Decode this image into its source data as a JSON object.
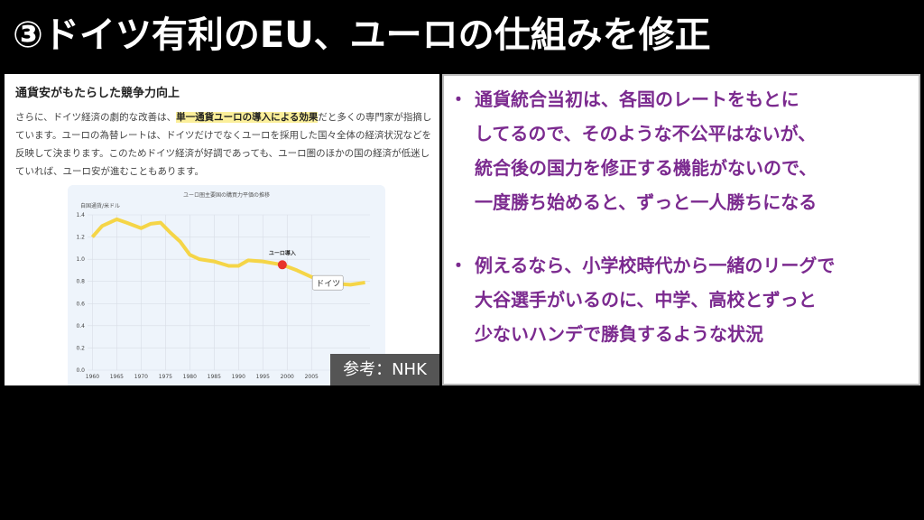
{
  "header": {
    "title": "③ドイツ有利のEU、ユーロの仕組みを修正"
  },
  "article": {
    "heading": "通貨安がもたらした競争力向上",
    "paragraph": {
      "before": "さらに、ドイツ経済の劇的な改善は、",
      "highlight": "単一通貨ユーロの導入による効果",
      "after": "だと多くの専門家が指摘しています。ユーロの為替レートは、ドイツだけでなくユーロを採用した国々全体の経済状況などを反映して決まります。このためドイツ経済が好調であっても、ユーロ圏のほかの国の経済が低迷していれば、ユーロ安が進むこともあります。"
    }
  },
  "chart_data": {
    "type": "line",
    "title": "ユーロ圏主要国の購買力平価の推移",
    "y_label": "自国通貨/米ドル",
    "x": [
      1960,
      1962,
      1965,
      1967,
      1970,
      1972,
      1974,
      1976,
      1978,
      1980,
      1982,
      1985,
      1988,
      1990,
      1992,
      1995,
      1999,
      2002,
      2005,
      2008,
      2010,
      2013,
      2016
    ],
    "series": [
      {
        "name": "ドイツ",
        "color": "#f5d547",
        "values": [
          1.2,
          1.3,
          1.36,
          1.33,
          1.28,
          1.32,
          1.33,
          1.24,
          1.16,
          1.04,
          1.0,
          0.98,
          0.94,
          0.94,
          0.99,
          0.98,
          0.95,
          0.9,
          0.84,
          0.79,
          0.78,
          0.77,
          0.79
        ]
      }
    ],
    "annotation": {
      "text": "ユーロ導入",
      "x": 1999,
      "y": 0.95,
      "color": "#e8342a"
    },
    "xlim": [
      1959,
      2017
    ],
    "ylim": [
      0,
      1.4
    ],
    "xticks": [
      1960,
      1965,
      1970,
      1975,
      1980,
      1985,
      1990,
      1995,
      2000,
      2005
    ],
    "yticks": [
      {
        "value": 0,
        "label": "0.0"
      },
      0.2,
      0.4,
      0.6,
      0.8,
      {
        "value": 1,
        "label": "1.0"
      },
      1.2,
      1.4
    ],
    "grid": true
  },
  "source": "参考：NHK",
  "bullets": [
    {
      "marker": "・",
      "lines": [
        "通貨統合当初は、各国のレートをもとに",
        "してるので、そのような不公平はないが、",
        "統合後の国力を修正する機能がないので、",
        "一度勝ち始めると、ずっと一人勝ちになる"
      ]
    },
    {
      "marker": "・",
      "lines": [
        "例えるなら、小学校時代から一緒のリーグで",
        "大谷選手がいるのに、中学、高校とずっと",
        "少ないハンデで勝負するような状況"
      ]
    }
  ]
}
